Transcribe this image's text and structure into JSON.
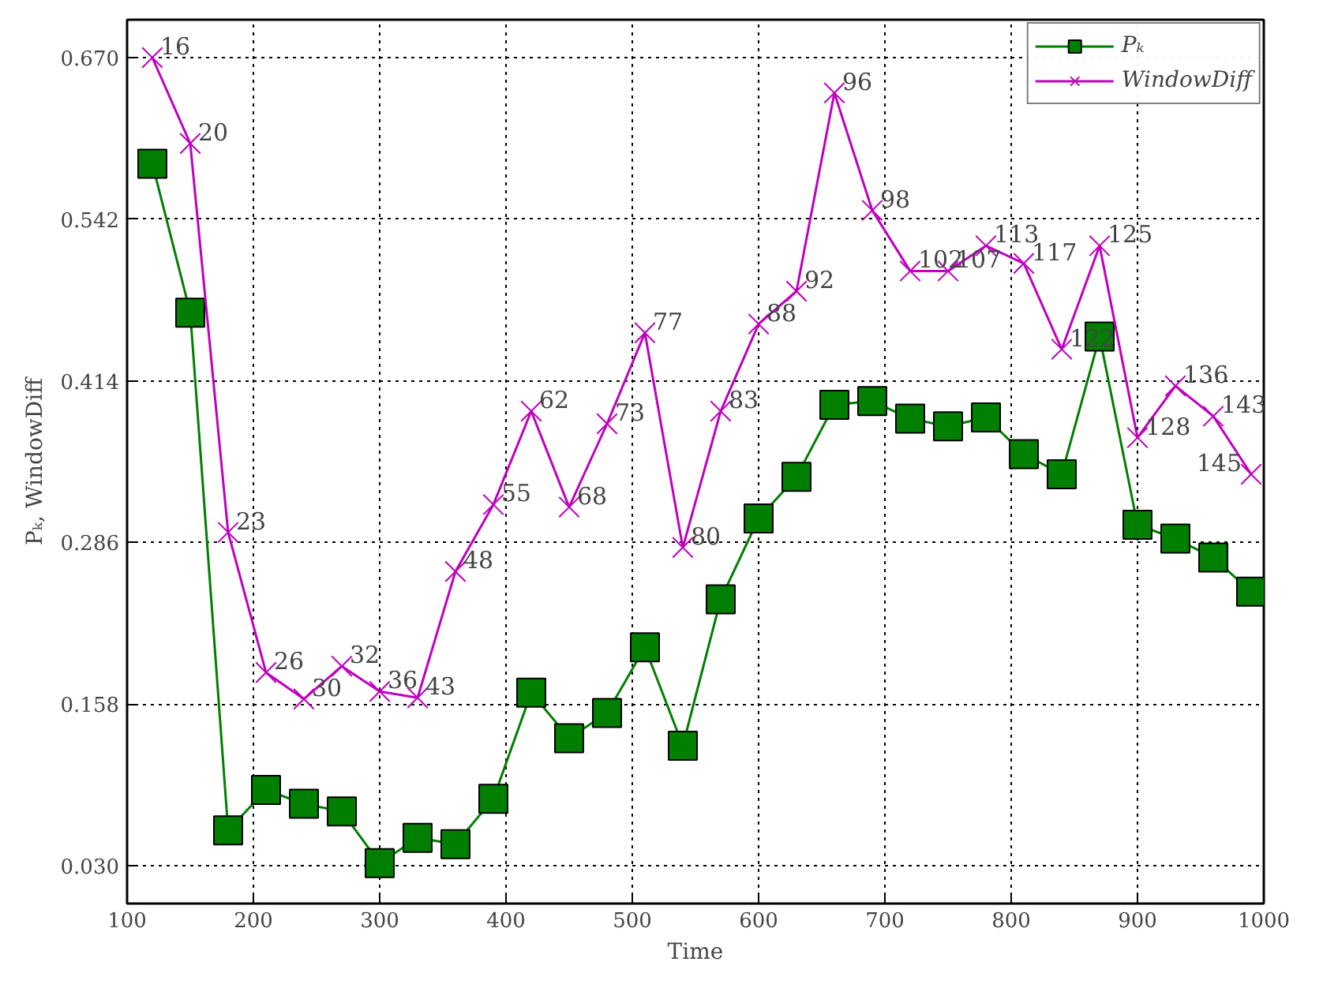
{
  "chart_data": {
    "type": "line",
    "xlabel": "Time",
    "ylabel": "Pₖ, WindowDiff",
    "x": [
      120,
      150,
      180,
      210,
      240,
      270,
      300,
      330,
      360,
      390,
      420,
      450,
      480,
      510,
      540,
      570,
      600,
      630,
      660,
      690,
      720,
      750,
      780,
      810,
      840,
      870,
      900,
      930,
      960,
      990
    ],
    "xlim": [
      100,
      1000
    ],
    "xticks": [
      100,
      200,
      300,
      400,
      500,
      600,
      700,
      800,
      900,
      1000
    ],
    "ylim": [
      0,
      0.7
    ],
    "yticks": [
      {
        "value": 0.03,
        "label": "0.030"
      },
      {
        "value": 0.158,
        "label": "0.158"
      },
      {
        "value": 0.286,
        "label": "0.286"
      },
      {
        "value": 0.414,
        "label": "0.414"
      },
      {
        "value": 0.542,
        "label": "0.542"
      },
      {
        "value": 0.67,
        "label": "0.670"
      }
    ],
    "grid": true,
    "legend": "top right",
    "line_style": "solid",
    "series": [
      {
        "name": "Pₖ",
        "color": "#007f00",
        "marker": "square",
        "values": [
          0.586,
          0.468,
          0.058,
          0.09,
          0.079,
          0.073,
          0.032,
          0.052,
          0.047,
          0.083,
          0.167,
          0.131,
          0.151,
          0.203,
          0.125,
          0.241,
          0.305,
          0.338,
          0.395,
          0.398,
          0.384,
          0.378,
          0.385,
          0.356,
          0.34,
          0.449,
          0.3,
          0.289,
          0.274,
          0.247
        ]
      },
      {
        "name": "WindowDiff",
        "color": "#bf00bf",
        "marker": "cross",
        "values": [
          0.67,
          0.602,
          0.294,
          0.183,
          0.162,
          0.188,
          0.168,
          0.163,
          0.263,
          0.316,
          0.39,
          0.314,
          0.38,
          0.452,
          0.282,
          0.39,
          0.459,
          0.485,
          0.642,
          0.549,
          0.501,
          0.501,
          0.521,
          0.507,
          0.439,
          0.521,
          0.369,
          0.41,
          0.386,
          0.34
        ]
      }
    ],
    "annotations": [
      {
        "text": "16",
        "x": 120,
        "y": 0.67
      },
      {
        "text": "20",
        "x": 150,
        "y": 0.602
      },
      {
        "text": "23",
        "x": 180,
        "y": 0.294
      },
      {
        "text": "26",
        "x": 210,
        "y": 0.183
      },
      {
        "text": "30",
        "x": 240,
        "y": 0.162
      },
      {
        "text": "32",
        "x": 270,
        "y": 0.188
      },
      {
        "text": "36",
        "x": 300,
        "y": 0.168
      },
      {
        "text": "43",
        "x": 330,
        "y": 0.163
      },
      {
        "text": "48",
        "x": 360,
        "y": 0.263
      },
      {
        "text": "55",
        "x": 390,
        "y": 0.316
      },
      {
        "text": "62",
        "x": 420,
        "y": 0.39
      },
      {
        "text": "68",
        "x": 450,
        "y": 0.314
      },
      {
        "text": "73",
        "x": 480,
        "y": 0.38
      },
      {
        "text": "77",
        "x": 510,
        "y": 0.452
      },
      {
        "text": "80",
        "x": 540,
        "y": 0.282
      },
      {
        "text": "83",
        "x": 570,
        "y": 0.39
      },
      {
        "text": "88",
        "x": 600,
        "y": 0.459
      },
      {
        "text": "92",
        "x": 630,
        "y": 0.485
      },
      {
        "text": "96",
        "x": 660,
        "y": 0.642
      },
      {
        "text": "98",
        "x": 690,
        "y": 0.549
      },
      {
        "text": "102",
        "x": 720,
        "y": 0.501
      },
      {
        "text": "107",
        "x": 750,
        "y": 0.501
      },
      {
        "text": "113",
        "x": 780,
        "y": 0.521
      },
      {
        "text": "117",
        "x": 810,
        "y": 0.507
      },
      {
        "text": "122",
        "x": 840,
        "y": 0.439
      },
      {
        "text": "125",
        "x": 870,
        "y": 0.521
      },
      {
        "text": "128",
        "x": 900,
        "y": 0.369
      },
      {
        "text": "136",
        "x": 930,
        "y": 0.41
      },
      {
        "text": "143",
        "x": 960,
        "y": 0.386
      },
      {
        "text": "145",
        "x": 990,
        "y": 0.34
      }
    ]
  }
}
